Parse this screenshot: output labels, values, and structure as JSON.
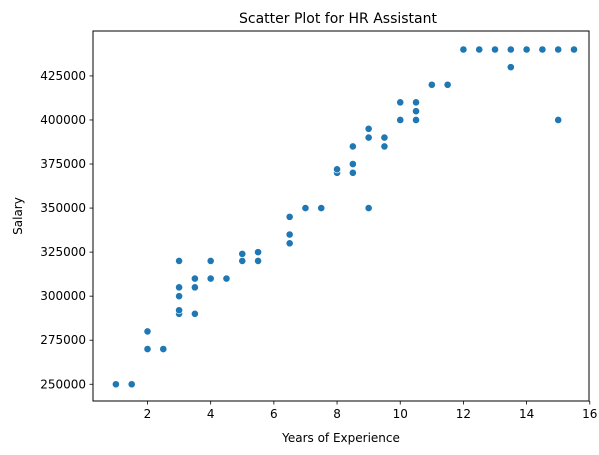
{
  "chart_data": {
    "type": "scatter",
    "title": "Scatter Plot for HR Assistant",
    "xlabel": "Years of Experience",
    "ylabel": "Salary",
    "xlim": [
      0.275,
      15.975
    ],
    "ylim": [
      240500,
      450500
    ],
    "xticks": [
      2,
      4,
      6,
      8,
      10,
      12,
      14,
      16
    ],
    "yticks": [
      250000,
      275000,
      300000,
      325000,
      350000,
      375000,
      400000,
      425000
    ],
    "grid": false,
    "marker_color": "#1f77b4",
    "points": [
      {
        "x": 1,
        "y": 250000
      },
      {
        "x": 1.5,
        "y": 250000
      },
      {
        "x": 2,
        "y": 270000
      },
      {
        "x": 2,
        "y": 280000
      },
      {
        "x": 2.5,
        "y": 270000
      },
      {
        "x": 3,
        "y": 290000
      },
      {
        "x": 3,
        "y": 292000
      },
      {
        "x": 3,
        "y": 300000
      },
      {
        "x": 3,
        "y": 305000
      },
      {
        "x": 3,
        "y": 320000
      },
      {
        "x": 3.5,
        "y": 290000
      },
      {
        "x": 3.5,
        "y": 305000
      },
      {
        "x": 3.5,
        "y": 310000
      },
      {
        "x": 4,
        "y": 310000
      },
      {
        "x": 4,
        "y": 320000
      },
      {
        "x": 4.5,
        "y": 310000
      },
      {
        "x": 5,
        "y": 320000
      },
      {
        "x": 5,
        "y": 324000
      },
      {
        "x": 5.5,
        "y": 320000
      },
      {
        "x": 5.5,
        "y": 325000
      },
      {
        "x": 6.5,
        "y": 330000
      },
      {
        "x": 6.5,
        "y": 335000
      },
      {
        "x": 6.5,
        "y": 345000
      },
      {
        "x": 7,
        "y": 350000
      },
      {
        "x": 7.5,
        "y": 350000
      },
      {
        "x": 8,
        "y": 370000
      },
      {
        "x": 8,
        "y": 372000
      },
      {
        "x": 8.5,
        "y": 370000
      },
      {
        "x": 8.5,
        "y": 375000
      },
      {
        "x": 8.5,
        "y": 385000
      },
      {
        "x": 9,
        "y": 350000
      },
      {
        "x": 9,
        "y": 390000
      },
      {
        "x": 9,
        "y": 395000
      },
      {
        "x": 9.5,
        "y": 385000
      },
      {
        "x": 9.5,
        "y": 390000
      },
      {
        "x": 10,
        "y": 400000
      },
      {
        "x": 10,
        "y": 410000
      },
      {
        "x": 10.5,
        "y": 400000
      },
      {
        "x": 10.5,
        "y": 405000
      },
      {
        "x": 10.5,
        "y": 410000
      },
      {
        "x": 11,
        "y": 420000
      },
      {
        "x": 11.5,
        "y": 420000
      },
      {
        "x": 12,
        "y": 440000
      },
      {
        "x": 12.5,
        "y": 440000
      },
      {
        "x": 13,
        "y": 440000
      },
      {
        "x": 13.5,
        "y": 430000
      },
      {
        "x": 13.5,
        "y": 440000
      },
      {
        "x": 14,
        "y": 440000
      },
      {
        "x": 14.5,
        "y": 440000
      },
      {
        "x": 15,
        "y": 400000
      },
      {
        "x": 15,
        "y": 440000
      },
      {
        "x": 15.5,
        "y": 440000
      }
    ]
  }
}
